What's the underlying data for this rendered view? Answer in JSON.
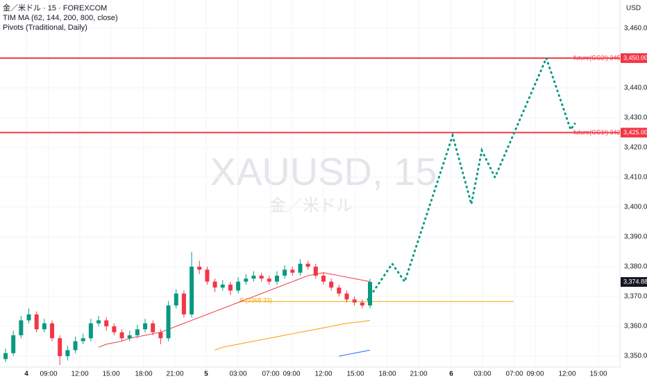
{
  "chart_data": {
    "type": "candlestick",
    "title": "金／米ドル · 15 · FOREXCOM",
    "indicators": [
      "TIM MA (62, 144, 200, 800, close)",
      "Pivots (Traditional, Daily)"
    ],
    "watermark": "XAUUSD, 15",
    "watermark_sub": "金／米ドル",
    "currency": "USD",
    "up_color": "#089981",
    "down_color": "#f23645",
    "ylim": [
      3346.3,
      3469.5
    ],
    "yticks": [
      {
        "value": 3350,
        "label": "3,350.00"
      },
      {
        "value": 3360,
        "label": "3,360.00"
      },
      {
        "value": 3370,
        "label": "3,370.00"
      },
      {
        "value": 3380,
        "label": "3,380.00"
      },
      {
        "value": 3390,
        "label": "3,390.00"
      },
      {
        "value": 3400,
        "label": "3,400.00"
      },
      {
        "value": 3410,
        "label": "3,410.00"
      },
      {
        "value": 3420,
        "label": "3,420.00"
      },
      {
        "value": 3430,
        "label": "3,430.00"
      },
      {
        "value": 3440,
        "label": "3,440.00"
      },
      {
        "value": 3450,
        "label": "3,450.00"
      },
      {
        "value": 3460,
        "label": "3,460.00"
      }
    ],
    "xticks": [
      "4",
      "09:00",
      "12:00",
      "15:00",
      "18:00",
      "21:00",
      "5",
      "03:00",
      "07:00",
      "09:00",
      "12:00",
      "15:00",
      "18:00",
      "21:00",
      "6",
      "03:00",
      "07:00",
      "09:00",
      "12:00",
      "15:00"
    ],
    "grid": true,
    "candles": {
      "open": [
        3349,
        3351,
        3357,
        3362,
        3364,
        3359,
        3361,
        3356,
        3350,
        3352,
        3355,
        3356,
        3361,
        3362,
        3360,
        3358,
        3356,
        3357,
        3359,
        3361,
        3358,
        3356,
        3367,
        3371,
        3364,
        3380,
        3379,
        3375,
        3373,
        3374,
        3372,
        3375,
        3376,
        3377,
        3376,
        3375,
        3377,
        3379,
        3378,
        3381,
        3380,
        3377,
        3375,
        3373,
        3371,
        3369,
        3368,
        3367
      ],
      "high": [
        3352.5,
        3358.5,
        3363.5,
        3366,
        3365,
        3362.5,
        3362,
        3357,
        3353.5,
        3356.5,
        3357.5,
        3362.5,
        3363.5,
        3363,
        3361,
        3359,
        3358.5,
        3360.5,
        3362.5,
        3362,
        3359,
        3368.5,
        3372.5,
        3372,
        3385,
        3382,
        3380,
        3376,
        3375.5,
        3375,
        3376.5,
        3377.5,
        3378.5,
        3378,
        3377,
        3378.5,
        3380.5,
        3380,
        3382.5,
        3382,
        3381,
        3378,
        3376,
        3374,
        3372,
        3370,
        3369,
        3376
      ],
      "low": [
        3348,
        3350,
        3356,
        3361,
        3358,
        3358,
        3355,
        3347,
        3348.5,
        3351,
        3354,
        3355,
        3360,
        3358.5,
        3357,
        3355,
        3355,
        3356,
        3358,
        3357,
        3354,
        3355,
        3366,
        3363,
        3363,
        3377.5,
        3374,
        3371.5,
        3372,
        3370.5,
        3371,
        3374,
        3375,
        3375,
        3374,
        3374,
        3376,
        3377,
        3377,
        3379,
        3376,
        3374,
        3372,
        3370,
        3368,
        3367,
        3366,
        3366
      ],
      "close": [
        3351,
        3357,
        3362,
        3364,
        3359,
        3361,
        3356,
        3350,
        3352,
        3355,
        3356,
        3361,
        3362,
        3360,
        3358,
        3356,
        3357,
        3359,
        3361,
        3358,
        3356,
        3367,
        3371,
        3364,
        3380,
        3379,
        3375,
        3373,
        3374,
        3372,
        3375,
        3376,
        3377,
        3376,
        3375,
        3377,
        3379,
        3378,
        3381,
        3380,
        3377,
        3375,
        3373,
        3371,
        3369,
        3368,
        3367,
        3374.88
      ]
    },
    "series": [
      {
        "color": "#f23645",
        "values": [
          null,
          null,
          null,
          null,
          null,
          null,
          null,
          null,
          null,
          null,
          null,
          null,
          3353,
          3354,
          3354.5,
          3355,
          3356,
          3356.5,
          3357,
          3357.5,
          3358,
          3359,
          3360,
          3361,
          3362,
          3363,
          3364,
          3365,
          3366,
          3367,
          3368,
          3369,
          3370,
          3371,
          3372,
          3373,
          3374,
          3375,
          3376,
          3377,
          3377.5,
          3378,
          3377.5,
          3377,
          3376.5,
          3376,
          3375.5,
          3375
        ]
      },
      {
        "color": "#ff9800",
        "values": [
          null,
          null,
          null,
          null,
          null,
          null,
          null,
          null,
          null,
          null,
          null,
          null,
          null,
          null,
          null,
          null,
          null,
          null,
          null,
          null,
          null,
          null,
          null,
          null,
          null,
          null,
          null,
          3352,
          3353,
          3353.5,
          3354,
          3354.5,
          3355,
          3355.5,
          3356,
          3356.5,
          3357,
          3357.5,
          3358,
          3358.5,
          3359,
          3359.5,
          3360,
          3360.5,
          3361,
          3361.3,
          3361.6,
          3362
        ]
      },
      {
        "color": "#2962ff",
        "values": [
          null,
          null,
          null,
          null,
          null,
          null,
          null,
          null,
          null,
          null,
          null,
          null,
          null,
          null,
          null,
          null,
          null,
          null,
          null,
          null,
          null,
          null,
          null,
          null,
          null,
          null,
          null,
          null,
          null,
          null,
          null,
          null,
          null,
          null,
          null,
          null,
          null,
          null,
          null,
          null,
          null,
          null,
          null,
          3350,
          3350.5,
          3351,
          3351.5,
          3352
        ]
      }
    ],
    "projection": {
      "color": "#089981",
      "values": [
        3369,
        3381,
        3375,
        3424,
        3401,
        3419,
        3410,
        3450,
        3426,
        3428
      ]
    },
    "pivot": {
      "value": 3368.33,
      "label": "P (3368.33)",
      "color": "#f7a600"
    },
    "levels": [
      {
        "value": 3450,
        "label": "future(GC2!) 3450",
        "price_label": "3,450.00",
        "color": "#f23645"
      },
      {
        "value": 3425,
        "label": "future(GC1!) 3425",
        "price_label": "3,425.00",
        "color": "#f23645"
      }
    ],
    "last_price": {
      "value": 3374.88,
      "label": "3,374.88"
    }
  }
}
